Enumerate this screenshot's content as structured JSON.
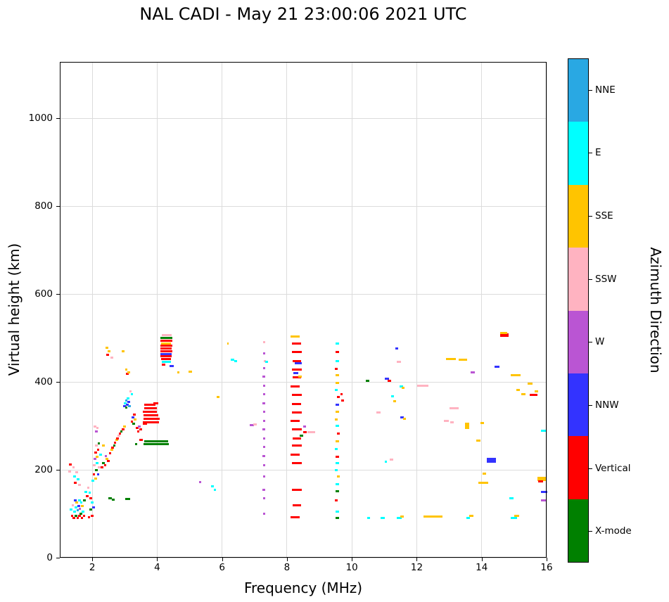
{
  "title": "NAL CADI - May 21 23:00:06 2021 UTC",
  "axes": {
    "xlabel": "Frequency (MHz)",
    "ylabel": "Virtual height (km)",
    "x_ticks": [
      2,
      4,
      6,
      8,
      10,
      12,
      14,
      16
    ],
    "y_ticks": [
      0,
      200,
      400,
      600,
      800,
      1000
    ],
    "xlim": [
      1,
      16
    ],
    "ylim": [
      0,
      1128
    ],
    "grid": true
  },
  "colorbar": {
    "label": "Azimuth Direction",
    "entries": [
      {
        "label": "NNE",
        "color": "#29a8e3"
      },
      {
        "label": "E",
        "color": "#00ffff"
      },
      {
        "label": "SSE",
        "color": "#ffc400"
      },
      {
        "label": "SSW",
        "color": "#ffb3c1"
      },
      {
        "label": "W",
        "color": "#ba55d3"
      },
      {
        "label": "NNW",
        "color": "#3333ff"
      },
      {
        "label": "Vertical",
        "color": "#ff0000"
      },
      {
        "label": "X-mode",
        "color": "#008000"
      }
    ]
  },
  "chart_data": {
    "type": "scatter",
    "title": "NAL CADI - May 21 23:00:06 2021 UTC",
    "xlabel": "Frequency (MHz)",
    "ylabel": "Virtual height (km)",
    "xlim": [
      1,
      16
    ],
    "ylim": [
      0,
      1128
    ],
    "grid": true,
    "legend_position": "right-colorbar",
    "series_names": [
      "NNE",
      "E",
      "SSE",
      "SSW",
      "W",
      "NNW",
      "Vertical",
      "X-mode"
    ],
    "series_colors": [
      "#29a8e3",
      "#00ffff",
      "#ffc400",
      "#ffb3c1",
      "#ba55d3",
      "#3333ff",
      "#ff0000",
      "#008000"
    ],
    "point_format": [
      "freq_MHz",
      "height_km",
      "direction_index",
      "dash_width_MHz_optional_default_0.08",
      "dash_height_px_optional_default_3"
    ],
    "points": [
      [
        1.3,
        196,
        3
      ],
      [
        1.32,
        212,
        6
      ],
      [
        1.35,
        110,
        1
      ],
      [
        1.38,
        95,
        6
      ],
      [
        1.4,
        120,
        3
      ],
      [
        1.42,
        205,
        3
      ],
      [
        1.44,
        90,
        6
      ],
      [
        1.45,
        105,
        1
      ],
      [
        1.46,
        185,
        1
      ],
      [
        1.48,
        130,
        5
      ],
      [
        1.48,
        170,
        6
      ],
      [
        1.5,
        95,
        7
      ],
      [
        1.5,
        115,
        1
      ],
      [
        1.52,
        125,
        2
      ],
      [
        1.52,
        195,
        3
      ],
      [
        1.55,
        90,
        6
      ],
      [
        1.55,
        108,
        0
      ],
      [
        1.56,
        178,
        1
      ],
      [
        1.58,
        118,
        5
      ],
      [
        1.6,
        95,
        6
      ],
      [
        1.6,
        130,
        1
      ],
      [
        1.6,
        165,
        3
      ],
      [
        1.62,
        112,
        4
      ],
      [
        1.65,
        100,
        7
      ],
      [
        1.66,
        125,
        1
      ],
      [
        1.68,
        90,
        6
      ],
      [
        1.7,
        118,
        2
      ],
      [
        1.72,
        105,
        1
      ],
      [
        1.75,
        95,
        6
      ],
      [
        1.76,
        130,
        7
      ],
      [
        1.8,
        150,
        1
      ],
      [
        1.84,
        140,
        6
      ],
      [
        1.88,
        160,
        3
      ],
      [
        1.9,
        92,
        6
      ],
      [
        1.92,
        148,
        1
      ],
      [
        1.95,
        135,
        6
      ],
      [
        1.95,
        110,
        7
      ],
      [
        2.0,
        95,
        6
      ],
      [
        2.0,
        125,
        1
      ],
      [
        2.04,
        115,
        5
      ],
      [
        2.02,
        175,
        1
      ],
      [
        2.05,
        190,
        6
      ],
      [
        2.06,
        210,
        3
      ],
      [
        2.08,
        225,
        4
      ],
      [
        2.08,
        298,
        3
      ],
      [
        2.1,
        180,
        2
      ],
      [
        2.1,
        240,
        6
      ],
      [
        2.12,
        200,
        7
      ],
      [
        2.12,
        255,
        3
      ],
      [
        2.12,
        288,
        4
      ],
      [
        2.15,
        215,
        1
      ],
      [
        2.15,
        230,
        2
      ],
      [
        2.16,
        295,
        3
      ],
      [
        2.18,
        245,
        6
      ],
      [
        2.18,
        190,
        5
      ],
      [
        2.2,
        260,
        7
      ],
      [
        2.22,
        205,
        3
      ],
      [
        2.25,
        235,
        1
      ],
      [
        2.3,
        205,
        6
      ],
      [
        2.35,
        215,
        7
      ],
      [
        2.35,
        255,
        2
      ],
      [
        2.4,
        210,
        6
      ],
      [
        2.42,
        232,
        4
      ],
      [
        2.45,
        225,
        2
      ],
      [
        2.45,
        478,
        2
      ],
      [
        2.48,
        462,
        6
      ],
      [
        2.5,
        220,
        6
      ],
      [
        2.52,
        470,
        2
      ],
      [
        2.55,
        135,
        7,
        0.1
      ],
      [
        2.6,
        455,
        3
      ],
      [
        2.55,
        238,
        6
      ],
      [
        2.6,
        245,
        2
      ],
      [
        2.62,
        250,
        6
      ],
      [
        2.65,
        132,
        7
      ],
      [
        2.68,
        255,
        7
      ],
      [
        2.7,
        262,
        6
      ],
      [
        2.75,
        268,
        2
      ],
      [
        2.78,
        272,
        6
      ],
      [
        2.82,
        278,
        3
      ],
      [
        2.85,
        282,
        6
      ],
      [
        2.9,
        288,
        7
      ],
      [
        2.95,
        292,
        6
      ],
      [
        2.95,
        470,
        2
      ],
      [
        3.0,
        298,
        2
      ],
      [
        3.0,
        345,
        5
      ],
      [
        3.02,
        352,
        1
      ],
      [
        3.05,
        358,
        0
      ],
      [
        3.05,
        342,
        7
      ],
      [
        3.05,
        428,
        2
      ],
      [
        3.08,
        418,
        6
      ],
      [
        3.08,
        348,
        5
      ],
      [
        3.1,
        133,
        7,
        0.15
      ],
      [
        3.1,
        362,
        1
      ],
      [
        3.12,
        422,
        2
      ],
      [
        3.12,
        355,
        5
      ],
      [
        3.15,
        345,
        0
      ],
      [
        3.18,
        378,
        3
      ],
      [
        3.22,
        372,
        1
      ],
      [
        3.22,
        310,
        6
      ],
      [
        3.25,
        320,
        5
      ],
      [
        3.28,
        305,
        7
      ],
      [
        3.3,
        325,
        6
      ],
      [
        3.32,
        315,
        2
      ],
      [
        3.35,
        258,
        7
      ],
      [
        3.38,
        295,
        6
      ],
      [
        3.42,
        288,
        6
      ],
      [
        3.45,
        298,
        4
      ],
      [
        3.5,
        292,
        6
      ],
      [
        3.5,
        268,
        6,
        0.1
      ],
      [
        3.62,
        305,
        6,
        0.12
      ],
      [
        3.8,
        308,
        6,
        0.5
      ],
      [
        3.82,
        316,
        6,
        0.5
      ],
      [
        3.8,
        324,
        6,
        0.46
      ],
      [
        3.78,
        332,
        6,
        0.44
      ],
      [
        3.8,
        340,
        6,
        0.4
      ],
      [
        3.78,
        348,
        6,
        0.34
      ],
      [
        3.95,
        352,
        6,
        0.15
      ],
      [
        3.97,
        258,
        7,
        0.8
      ],
      [
        3.97,
        265,
        7,
        0.72
      ],
      [
        4.3,
        507,
        3,
        0.3
      ],
      [
        4.28,
        500,
        7,
        0.36
      ],
      [
        4.28,
        494,
        6,
        0.36
      ],
      [
        4.28,
        488,
        2,
        0.3
      ],
      [
        4.28,
        482,
        6,
        0.36
      ],
      [
        4.28,
        476,
        6,
        0.34
      ],
      [
        4.28,
        470,
        6,
        0.36
      ],
      [
        4.28,
        464,
        5,
        0.34
      ],
      [
        4.28,
        458,
        6,
        0.34
      ],
      [
        4.28,
        452,
        6,
        0.3
      ],
      [
        4.28,
        446,
        1,
        0.28
      ],
      [
        4.2,
        440,
        6,
        0.1
      ],
      [
        4.45,
        436,
        5,
        0.12
      ],
      [
        4.65,
        422,
        2,
        0.06
      ],
      [
        5.02,
        424,
        2,
        0.1
      ],
      [
        5.32,
        172,
        4,
        0.06
      ],
      [
        5.7,
        162,
        1
      ],
      [
        5.78,
        155,
        1
      ],
      [
        5.88,
        366,
        2,
        0.1
      ],
      [
        6.18,
        487,
        2,
        0.06
      ],
      [
        6.32,
        450,
        1,
        0.1
      ],
      [
        6.42,
        447,
        1,
        0.1
      ],
      [
        6.92,
        302,
        4,
        0.12
      ],
      [
        7.02,
        303,
        3,
        0.1
      ],
      [
        7.3,
        100,
        4
      ],
      [
        7.3,
        135,
        4
      ],
      [
        7.28,
        155,
        4
      ],
      [
        7.3,
        185,
        4
      ],
      [
        7.3,
        210,
        4
      ],
      [
        7.28,
        232,
        4
      ],
      [
        7.3,
        252,
        4
      ],
      [
        7.3,
        272,
        4
      ],
      [
        7.28,
        292,
        4
      ],
      [
        7.3,
        312,
        4
      ],
      [
        7.3,
        332,
        4
      ],
      [
        7.28,
        352,
        4
      ],
      [
        7.3,
        372,
        4
      ],
      [
        7.3,
        392,
        4
      ],
      [
        7.28,
        412,
        4
      ],
      [
        7.3,
        432,
        4
      ],
      [
        7.32,
        448,
        3
      ],
      [
        7.38,
        446,
        1
      ],
      [
        7.3,
        465,
        4
      ],
      [
        7.3,
        490,
        3
      ],
      [
        8.25,
        92,
        6,
        0.3
      ],
      [
        8.3,
        120,
        6,
        0.25
      ],
      [
        8.3,
        155,
        6,
        0.3
      ],
      [
        8.3,
        215,
        6,
        0.3
      ],
      [
        8.25,
        235,
        6,
        0.28
      ],
      [
        8.3,
        255,
        6,
        0.3
      ],
      [
        8.3,
        272,
        6,
        0.25
      ],
      [
        8.3,
        292,
        6,
        0.3
      ],
      [
        8.25,
        312,
        6,
        0.28
      ],
      [
        8.3,
        330,
        6,
        0.3
      ],
      [
        8.3,
        350,
        6,
        0.28
      ],
      [
        8.3,
        370,
        6,
        0.3
      ],
      [
        8.25,
        390,
        6,
        0.28
      ],
      [
        8.3,
        410,
        6,
        0.25
      ],
      [
        8.3,
        428,
        6,
        0.3
      ],
      [
        8.3,
        448,
        6,
        0.25
      ],
      [
        8.3,
        468,
        6,
        0.3
      ],
      [
        8.3,
        488,
        6,
        0.28
      ],
      [
        8.25,
        503,
        2,
        0.3
      ],
      [
        8.4,
        412,
        2,
        0.12
      ],
      [
        8.35,
        443,
        5,
        0.2
      ],
      [
        8.28,
        420,
        5,
        0.15
      ],
      [
        8.45,
        278,
        7,
        0.1
      ],
      [
        8.55,
        298,
        4,
        0.08
      ],
      [
        8.75,
        286,
        3,
        0.25
      ],
      [
        8.55,
        285,
        6,
        0.12
      ],
      [
        9.55,
        90,
        7,
        0.12
      ],
      [
        9.55,
        105,
        1,
        0.1
      ],
      [
        9.52,
        130,
        6,
        0.1
      ],
      [
        9.55,
        152,
        7,
        0.12
      ],
      [
        9.55,
        168,
        1,
        0.1
      ],
      [
        9.58,
        185,
        2,
        0.1
      ],
      [
        9.52,
        200,
        1
      ],
      [
        9.55,
        215,
        1,
        0.1
      ],
      [
        9.55,
        230,
        6,
        0.1
      ],
      [
        9.52,
        248,
        1,
        0.1
      ],
      [
        9.55,
        265,
        2,
        0.1
      ],
      [
        9.58,
        282,
        6,
        0.1
      ],
      [
        9.55,
        300,
        1,
        0.1
      ],
      [
        9.52,
        315,
        2,
        0.1
      ],
      [
        9.55,
        332,
        2,
        0.1
      ],
      [
        9.55,
        348,
        5,
        0.1
      ],
      [
        9.58,
        365,
        6,
        0.1
      ],
      [
        9.52,
        382,
        1,
        0.1
      ],
      [
        9.55,
        398,
        2,
        0.1
      ],
      [
        9.55,
        415,
        2,
        0.1
      ],
      [
        9.52,
        430,
        6,
        0.1
      ],
      [
        9.55,
        448,
        1,
        0.1
      ],
      [
        9.55,
        468,
        6,
        0.1
      ],
      [
        9.55,
        488,
        1,
        0.12
      ],
      [
        9.68,
        372,
        6
      ],
      [
        9.72,
        358,
        6
      ],
      [
        10.48,
        402,
        7,
        0.12
      ],
      [
        10.52,
        90,
        1,
        0.1
      ],
      [
        10.82,
        330,
        3,
        0.12
      ],
      [
        10.95,
        90,
        1,
        0.15
      ],
      [
        11.05,
        218,
        1
      ],
      [
        11.08,
        408,
        5,
        0.12
      ],
      [
        11.15,
        403,
        6,
        0.1
      ],
      [
        11.22,
        224,
        3,
        0.1
      ],
      [
        11.25,
        368,
        1,
        0.1
      ],
      [
        11.32,
        356,
        2,
        0.1
      ],
      [
        11.38,
        476,
        5,
        0.1
      ],
      [
        11.45,
        446,
        3,
        0.12
      ],
      [
        11.45,
        90,
        1,
        0.15
      ],
      [
        11.52,
        390,
        1,
        0.12
      ],
      [
        11.55,
        93,
        2,
        0.12
      ],
      [
        11.58,
        386,
        2,
        0.1
      ],
      [
        11.55,
        320,
        5,
        0.1
      ],
      [
        11.62,
        316,
        2,
        0.1
      ],
      [
        12.18,
        392,
        3,
        0.35
      ],
      [
        12.5,
        93,
        2,
        0.6
      ],
      [
        12.92,
        312,
        3,
        0.15
      ],
      [
        13.08,
        308,
        3,
        0.12
      ],
      [
        13.15,
        340,
        3,
        0.3
      ],
      [
        13.05,
        452,
        2,
        0.3
      ],
      [
        13.42,
        450,
        2,
        0.25
      ],
      [
        13.55,
        300,
        2,
        0.12,
        9
      ],
      [
        13.58,
        90,
        1,
        0.12
      ],
      [
        13.68,
        95,
        2,
        0.12
      ],
      [
        13.72,
        422,
        4,
        0.12
      ],
      [
        13.9,
        266,
        2,
        0.12
      ],
      [
        14.02,
        306,
        2,
        0.12
      ],
      [
        14.05,
        170,
        2,
        0.3
      ],
      [
        14.08,
        192,
        2,
        0.12
      ],
      [
        14.3,
        222,
        5,
        0.3,
        7
      ],
      [
        14.48,
        434,
        5,
        0.15
      ],
      [
        14.7,
        506,
        6,
        0.25,
        5
      ],
      [
        14.68,
        511,
        2,
        0.2
      ],
      [
        14.92,
        136,
        1,
        0.12
      ],
      [
        15.0,
        90,
        1,
        0.2
      ],
      [
        15.08,
        95,
        2,
        0.15
      ],
      [
        15.05,
        415,
        2,
        0.3
      ],
      [
        15.12,
        381,
        2,
        0.12
      ],
      [
        15.28,
        372,
        2,
        0.12
      ],
      [
        15.5,
        396,
        2,
        0.15
      ],
      [
        15.6,
        370,
        6,
        0.25
      ],
      [
        15.68,
        378,
        2,
        0.1
      ],
      [
        15.85,
        180,
        2,
        0.25,
        6
      ],
      [
        15.82,
        173,
        6,
        0.15
      ],
      [
        15.9,
        289,
        1,
        0.15
      ],
      [
        15.92,
        150,
        5,
        0.2
      ],
      [
        15.9,
        130,
        4,
        0.15
      ]
    ]
  }
}
